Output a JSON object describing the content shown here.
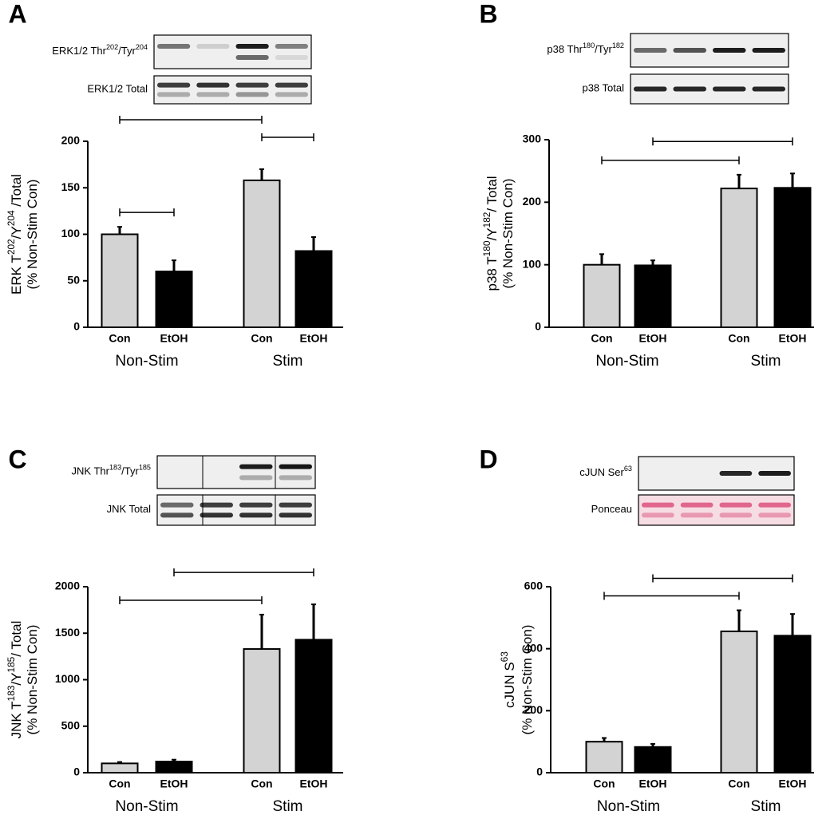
{
  "chart_data": [
    {
      "type": "bar",
      "panel": "A",
      "blots": [
        {
          "label": [
            {
              "text": "ERK1/2 Thr"
            },
            {
              "text": "202",
              "sup": true
            },
            {
              "text": "/Tyr"
            },
            {
              "text": "204",
              "sup": true
            }
          ]
        },
        {
          "label": [
            {
              "text": "ERK1/2 Total"
            }
          ]
        }
      ],
      "ylabel": [
        [
          {
            "text": "ERK T"
          },
          {
            "text": "202",
            "sup": true
          },
          {
            "text": "/Y"
          },
          {
            "text": "204",
            "sup": true
          },
          {
            "text": " /Total"
          }
        ],
        [
          {
            "text": "(% Non-Stim Con)"
          }
        ]
      ],
      "categories": [
        "Con",
        "EtOH",
        "Con",
        "EtOH"
      ],
      "groups": [
        "Non-Stim",
        "Stim"
      ],
      "values": [
        100,
        60,
        158,
        82
      ],
      "errors": [
        8,
        12,
        12,
        15
      ],
      "colors": [
        "#d3d3d3",
        "#000000",
        "#d3d3d3",
        "#000000"
      ],
      "ylim": [
        0,
        200
      ],
      "yticks": [
        0,
        50,
        100,
        150,
        200
      ],
      "brackets": [
        [
          0,
          1
        ],
        [
          2,
          3
        ],
        [
          0,
          2
        ]
      ]
    },
    {
      "type": "bar",
      "panel": "B",
      "blots": [
        {
          "label": [
            {
              "text": "p38 Thr"
            },
            {
              "text": "180",
              "sup": true
            },
            {
              "text": "/Tyr"
            },
            {
              "text": "182",
              "sup": true
            }
          ]
        },
        {
          "label": [
            {
              "text": "p38 Total"
            }
          ]
        }
      ],
      "ylabel": [
        [
          {
            "text": "p38 T"
          },
          {
            "text": "180",
            "sup": true
          },
          {
            "text": "/Y"
          },
          {
            "text": "182",
            "sup": true
          },
          {
            "text": "/ Total"
          }
        ],
        [
          {
            "text": "(% Non-Stim Con)"
          }
        ]
      ],
      "categories": [
        "Con",
        "EtOH",
        "Con",
        "EtOH"
      ],
      "groups": [
        "Non-Stim",
        "Stim"
      ],
      "values": [
        100,
        99,
        222,
        223
      ],
      "errors": [
        17,
        8,
        22,
        23
      ],
      "colors": [
        "#d3d3d3",
        "#000000",
        "#d3d3d3",
        "#000000"
      ],
      "ylim": [
        0,
        300
      ],
      "yticks": [
        0,
        100,
        200,
        300
      ],
      "brackets": [
        [
          0,
          2
        ],
        [
          1,
          3
        ]
      ]
    },
    {
      "type": "bar",
      "panel": "C",
      "blots": [
        {
          "label": [
            {
              "text": "JNK Thr"
            },
            {
              "text": "183",
              "sup": true
            },
            {
              "text": "/Tyr"
            },
            {
              "text": "185",
              "sup": true
            }
          ]
        },
        {
          "label": [
            {
              "text": "JNK Total"
            }
          ]
        }
      ],
      "ylabel": [
        [
          {
            "text": "JNK T"
          },
          {
            "text": "183",
            "sup": true
          },
          {
            "text": "/Y"
          },
          {
            "text": "185",
            "sup": true
          },
          {
            "text": "/ Total"
          }
        ],
        [
          {
            "text": "(% Non-Stim Con)"
          }
        ]
      ],
      "categories": [
        "Con",
        "EtOH",
        "Con",
        "EtOH"
      ],
      "groups": [
        "Non-Stim",
        "Stim"
      ],
      "values": [
        100,
        120,
        1330,
        1430
      ],
      "errors": [
        15,
        20,
        370,
        380
      ],
      "colors": [
        "#d3d3d3",
        "#000000",
        "#d3d3d3",
        "#000000"
      ],
      "ylim": [
        0,
        2000
      ],
      "yticks": [
        0,
        500,
        1000,
        1500,
        2000
      ],
      "brackets": [
        [
          0,
          2
        ],
        [
          1,
          3
        ]
      ]
    },
    {
      "type": "bar",
      "panel": "D",
      "blots": [
        {
          "label": [
            {
              "text": "cJUN Ser"
            },
            {
              "text": "63",
              "sup": true
            }
          ]
        },
        {
          "label": [
            {
              "text": "Ponceau"
            }
          ]
        }
      ],
      "ylabel": [
        [
          {
            "text": "cJUN S"
          },
          {
            "text": "63",
            "sup": true
          }
        ],
        [
          {
            "text": "(% Non-Stim Con)"
          }
        ]
      ],
      "categories": [
        "Con",
        "EtOH",
        "Con",
        "EtOH"
      ],
      "groups": [
        "Non-Stim",
        "Stim"
      ],
      "values": [
        100,
        83,
        456,
        442
      ],
      "errors": [
        12,
        10,
        68,
        70
      ],
      "colors": [
        "#d3d3d3",
        "#000000",
        "#d3d3d3",
        "#000000"
      ],
      "ylim": [
        0,
        600
      ],
      "yticks": [
        0,
        200,
        400,
        600
      ],
      "brackets": [
        [
          0,
          2
        ],
        [
          1,
          3
        ]
      ]
    }
  ]
}
